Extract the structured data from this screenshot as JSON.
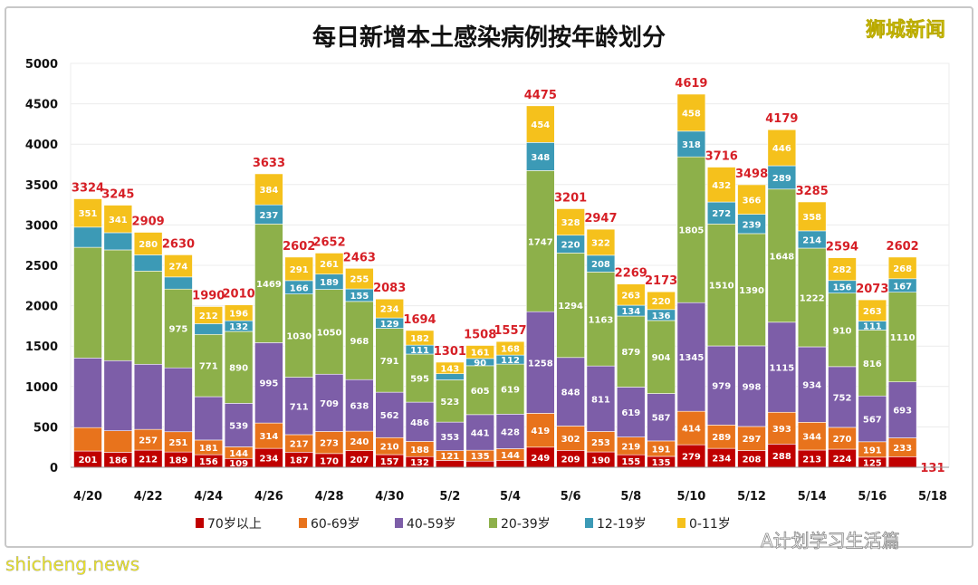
{
  "chart_data": {
    "type": "bar",
    "stacked": true,
    "title": "每日新增本土感染病例按年龄划分",
    "x_tick_labels": [
      "4/20",
      "4/22",
      "4/24",
      "4/26",
      "4/28",
      "4/30",
      "5/2",
      "5/4",
      "5/6",
      "5/8",
      "5/10",
      "5/12",
      "5/14",
      "5/16",
      "5/18"
    ],
    "y_ticks": [
      "0",
      "500",
      "1000",
      "1500",
      "2000",
      "2500",
      "3000",
      "3500",
      "4000",
      "4500",
      "5000"
    ],
    "ylim": [
      0,
      5000
    ],
    "grid": true,
    "legend_position": "bottom",
    "series": [
      {
        "name": "70岁以上",
        "color": "#c00000",
        "values": [
          201,
          186,
          212,
          189,
          156,
          109,
          234,
          187,
          170,
          207,
          157,
          132,
          85,
          76,
          86,
          249,
          209,
          190,
          155,
          135,
          279,
          234,
          208,
          288,
          213,
          224,
          125,
          131
        ]
      },
      {
        "name": "60-69岁",
        "color": "#e8731c",
        "values": [
          290,
          266,
          257,
          251,
          181,
          144,
          314,
          217,
          273,
          240,
          210,
          188,
          121,
          135,
          144,
          419,
          302,
          253,
          219,
          191,
          414,
          289,
          297,
          393,
          344,
          270,
          191,
          233
        ]
      },
      {
        "name": "40-59岁",
        "color": "#7d5ea8",
        "values": [
          862,
          868,
          806,
          791,
          537,
          539,
          995,
          711,
          709,
          638,
          562,
          486,
          353,
          441,
          428,
          1258,
          848,
          811,
          619,
          587,
          1345,
          979,
          998,
          1115,
          934,
          752,
          567,
          693
        ]
      },
      {
        "name": "20-39岁",
        "color": "#8db04a",
        "values": [
          1370,
          1371,
          1154,
          975,
          771,
          890,
          1469,
          1030,
          1050,
          968,
          791,
          595,
          523,
          605,
          619,
          1747,
          1294,
          1163,
          879,
          904,
          1805,
          1510,
          1390,
          1648,
          1222,
          910,
          816,
          1110
        ]
      },
      {
        "name": "12-19岁",
        "color": "#3c9ab6",
        "values": [
          250,
          213,
          200,
          150,
          133,
          132,
          237,
          166,
          189,
          155,
          129,
          111,
          76,
          90,
          112,
          348,
          220,
          208,
          134,
          136,
          318,
          272,
          239,
          289,
          214,
          156,
          111,
          167
        ]
      },
      {
        "name": "0-11岁",
        "color": "#f5c11c",
        "values": [
          351,
          341,
          280,
          274,
          212,
          196,
          384,
          291,
          261,
          255,
          234,
          182,
          143,
          161,
          168,
          454,
          328,
          322,
          263,
          220,
          458,
          432,
          366,
          446,
          358,
          282,
          263,
          268
        ]
      }
    ],
    "unlabeled_segments": [
      [
        1,
        0
      ],
      [
        2,
        0
      ],
      [
        3,
        0
      ],
      [
        4,
        0
      ],
      [
        1,
        1
      ],
      [
        2,
        1
      ],
      [
        3,
        1
      ],
      [
        4,
        1
      ],
      [
        2,
        2
      ],
      [
        3,
        2
      ],
      [
        4,
        2
      ],
      [
        2,
        3
      ],
      [
        4,
        3
      ],
      [
        2,
        4
      ],
      [
        4,
        4
      ],
      [
        0,
        27
      ]
    ],
    "totals": [
      "3324",
      "3245",
      "2909",
      "2630",
      "1990",
      "2010",
      "3633",
      "2602",
      "2652",
      "2463",
      "2083",
      "1694",
      "1301",
      "1508",
      "1557",
      "4475",
      "3201",
      "2947",
      "2269",
      "2173",
      "4619",
      "3716",
      "3498",
      "4179",
      "3285",
      "2594",
      "2073",
      "2602"
    ],
    "outside_label": "131"
  },
  "watermarks": {
    "top_right": "狮城新闻",
    "bottom_right": "A计划学习生活篇",
    "bottom_left": "shicheng.news"
  }
}
